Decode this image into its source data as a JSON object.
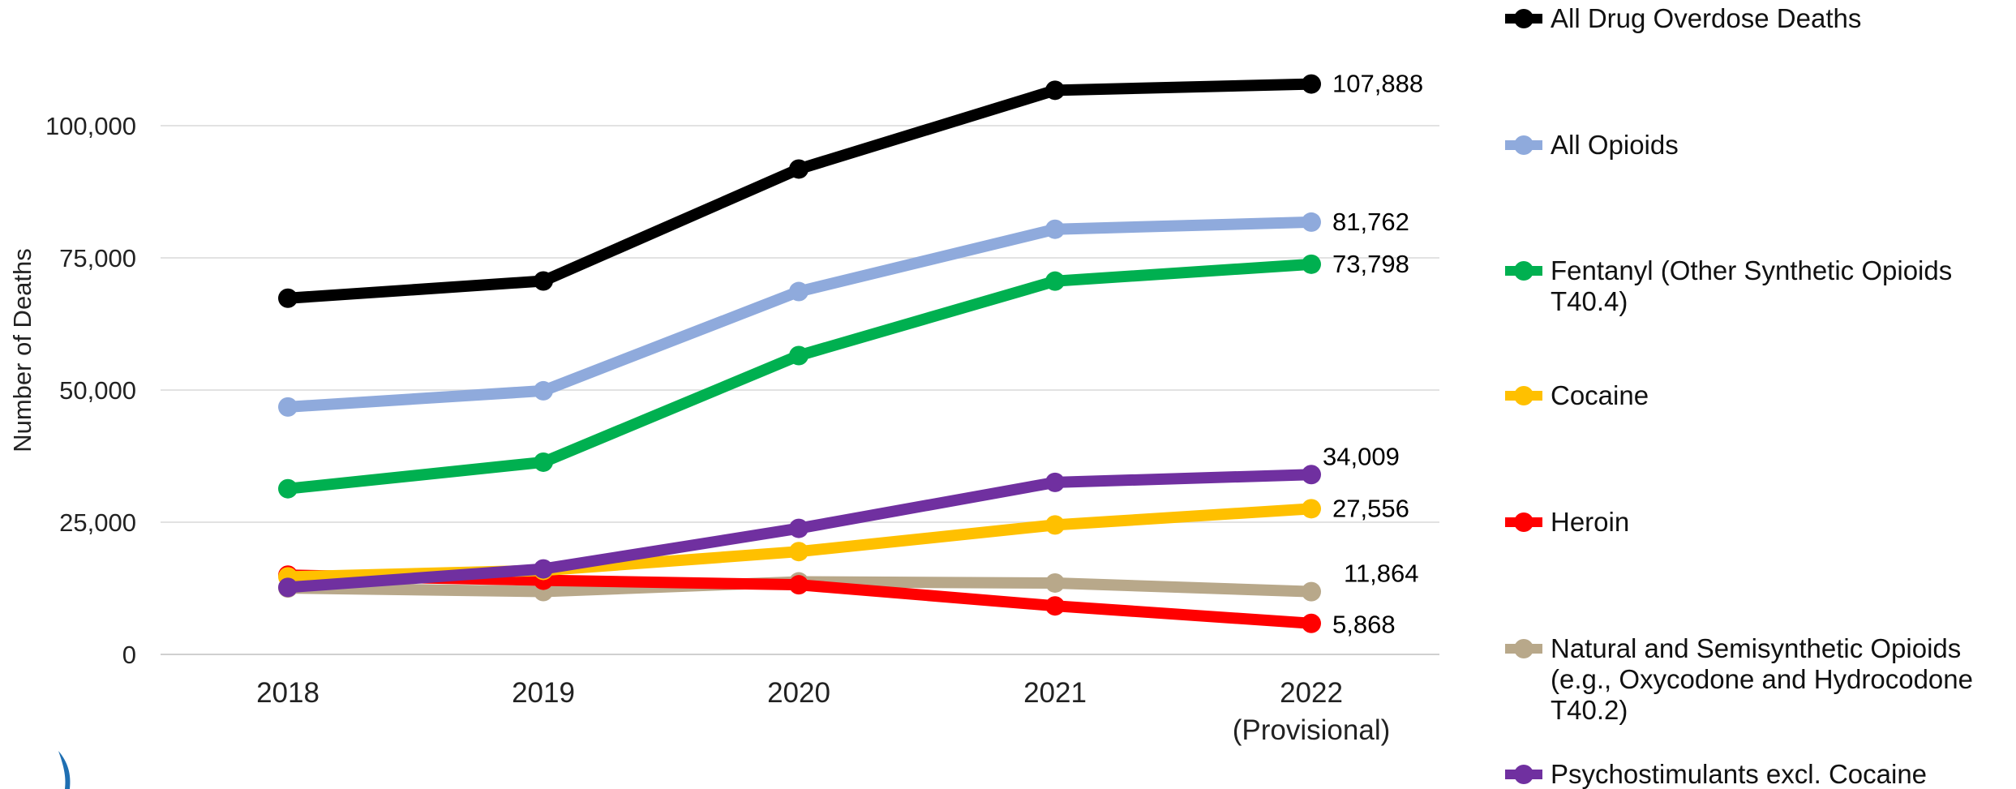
{
  "chart_data": {
    "type": "line",
    "title": "",
    "xlabel": "",
    "ylabel": "Number of Deaths",
    "categories": [
      "2018",
      "2019",
      "2020",
      "2021",
      "2022"
    ],
    "category_sublabels": [
      "",
      "",
      "",
      "",
      "(Provisional)"
    ],
    "ylim": [
      0,
      120000
    ],
    "yticks": [
      0,
      25000,
      50000,
      75000,
      100000
    ],
    "ytick_labels": [
      "0",
      "25,000",
      "50,000",
      "75,000",
      "100,000"
    ],
    "grid": true,
    "legend_position": "right",
    "series": [
      {
        "name": "All Drug Overdose Deaths",
        "color": "#000000",
        "values": [
          67367,
          70630,
          91799,
          106699,
          107888
        ],
        "end_label": "107,888",
        "end_label_color": "#000000"
      },
      {
        "name": "All Opioids",
        "color": "#8faadc",
        "values": [
          46802,
          49860,
          68630,
          80411,
          81762
        ],
        "end_label": "81,762",
        "end_label_color": "#000000"
      },
      {
        "name": "Fentanyl (Other Synthetic Opioids T40.4)",
        "color": "#00b050",
        "values": [
          31335,
          36359,
          56516,
          70601,
          73798
        ],
        "end_label": "73,798",
        "end_label_color": "#000000"
      },
      {
        "name": "Cocaine",
        "color": "#ffc000",
        "values": [
          14666,
          15883,
          19447,
          24486,
          27556
        ],
        "end_label": "27,556",
        "end_label_color": "#000000"
      },
      {
        "name": "Heroin",
        "color": "#ff0000",
        "values": [
          14996,
          14019,
          13165,
          9173,
          5868
        ],
        "end_label": "5,868",
        "end_label_color": "#555555"
      },
      {
        "name": "Natural and Semisynthetic Opioids (e.g., Oxycodone and Hydrocodone T40.2)",
        "color": "#b8a88a",
        "values": [
          12552,
          11886,
          13722,
          13503,
          11864
        ],
        "end_label": "11,864",
        "end_label_color": "#000000"
      },
      {
        "name": "Psychostimulants excl. Cocaine",
        "color": "#7030a0",
        "values": [
          12676,
          16167,
          23837,
          32537,
          34009
        ],
        "end_label": "34,009",
        "end_label_color": "#000000"
      }
    ]
  }
}
